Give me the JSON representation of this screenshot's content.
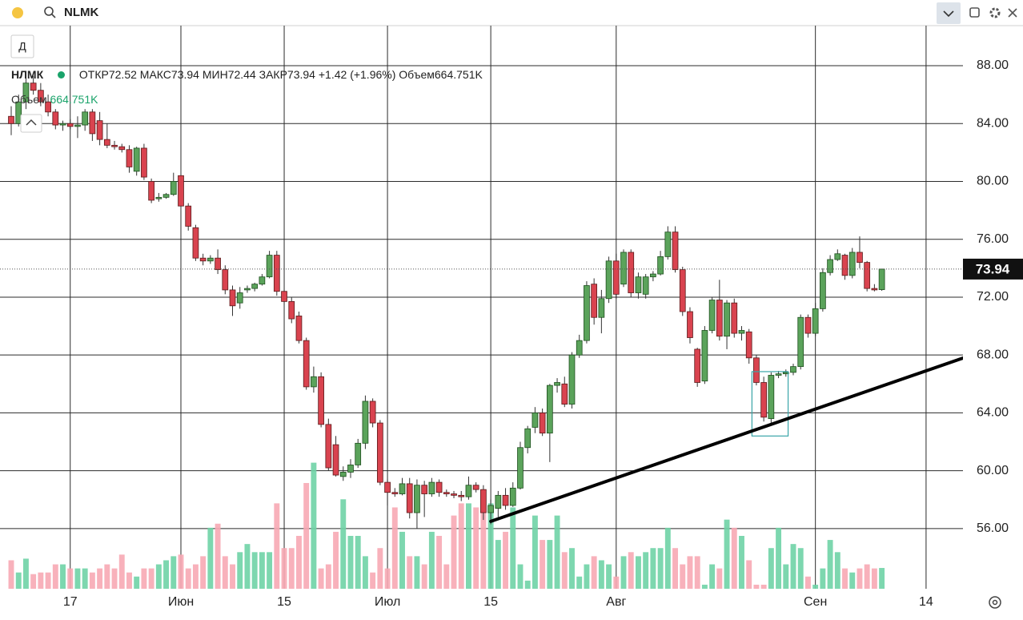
{
  "header": {
    "search": "NLMK"
  },
  "toolbar": {
    "interval": "Д"
  },
  "legend": {
    "ticker": "НЛМК",
    "open_label": "ОТКР",
    "high_label": "МАКС",
    "low_label": "МИН",
    "close_label": "ЗАКР",
    "change": "+1.42",
    "change_pct": "(+1.96%)",
    "volume_label": "Объем",
    "volume_value_label": "664.751K"
  },
  "chart_data": {
    "type": "candlestick",
    "categories": [
      null,
      null,
      null,
      null,
      null,
      null,
      null,
      null,
      "17",
      null,
      null,
      null,
      null,
      null,
      null,
      null,
      null,
      null,
      null,
      null,
      null,
      null,
      null,
      "Июн",
      null,
      null,
      null,
      null,
      null,
      null,
      null,
      null,
      null,
      null,
      null,
      null,
      null,
      "15",
      null,
      null,
      null,
      null,
      null,
      null,
      null,
      null,
      null,
      null,
      null,
      null,
      null,
      "Июл",
      null,
      null,
      null,
      null,
      null,
      null,
      null,
      null,
      null,
      null,
      null,
      null,
      null,
      "15",
      null,
      null,
      null,
      null,
      null,
      null,
      null,
      null,
      null,
      null,
      null,
      null,
      null,
      null,
      null,
      null,
      "Авг",
      null,
      null,
      null,
      null,
      null,
      null,
      null,
      null,
      null,
      null,
      null,
      null,
      null,
      null,
      null,
      null,
      null,
      null,
      null,
      null,
      null,
      null,
      null,
      null,
      null,
      null,
      "Сен",
      null,
      null,
      null,
      null,
      null,
      null,
      null,
      null,
      null,
      null,
      null,
      null,
      null,
      null,
      "14",
      null,
      null,
      null,
      null,
      null
    ],
    "open": [
      84.5,
      84.0,
      85.5,
      86.8,
      86.3,
      85.5,
      84.8,
      83.9,
      84.0,
      83.8,
      83.9,
      84.8,
      84.2,
      82.9,
      82.5,
      82.4,
      82.2,
      80.7,
      82.3,
      80.0,
      78.8,
      78.9,
      79.1,
      80.4,
      78.3,
      76.8,
      74.7,
      74.5,
      74.7,
      73.9,
      72.5,
      71.6,
      72.5,
      72.6,
      72.9,
      73.4,
      74.9,
      72.4,
      71.7,
      70.7,
      69.0,
      65.8,
      66.5,
      63.2,
      61.8,
      59.6,
      59.9,
      60.4,
      61.9,
      64.8,
      63.3,
      59.2,
      58.5,
      58.4,
      59.1,
      57.1,
      59.0,
      58.4,
      59.2,
      58.5,
      58.4,
      58.3,
      58.2,
      59.0,
      58.7,
      57.1,
      57.4,
      58.3,
      57.6,
      58.8,
      61.6,
      63.0,
      64.0,
      62.6,
      65.9,
      66.0,
      64.6,
      68.0,
      69.0,
      72.9,
      70.6,
      71.9,
      74.5,
      72.9,
      75.1,
      72.3,
      72.2,
      73.4,
      73.6,
      74.8,
      76.5,
      73.9,
      71.0,
      68.4,
      66.2,
      69.7,
      71.8,
      69.3,
      71.6,
      69.5,
      69.6,
      67.8,
      66.1,
      63.6,
      66.6,
      66.7,
      66.8,
      67.2,
      70.6,
      69.5,
      71.2,
      73.7,
      74.6,
      74.9,
      73.5,
      75.1,
      74.4,
      72.6,
      72.52,
      null,
      null,
      null,
      null,
      null,
      null,
      null,
      null,
      null,
      null,
      null
    ],
    "high": [
      85.2,
      86.0,
      87.5,
      87.3,
      86.8,
      86.0,
      85.0,
      84.2,
      84.3,
      84.5,
      85.0,
      85.0,
      84.8,
      84.0,
      82.8,
      82.6,
      82.5,
      82.4,
      82.6,
      80.2,
      79.2,
      79.2,
      80.6,
      80.8,
      78.5,
      77.0,
      75.0,
      74.9,
      75.3,
      74.2,
      72.8,
      72.7,
      72.8,
      73.0,
      73.6,
      75.2,
      75.2,
      72.6,
      72.0,
      71.0,
      69.2,
      67.2,
      66.8,
      63.6,
      62.4,
      60.3,
      60.8,
      62.2,
      65.2,
      65.0,
      63.5,
      59.4,
      58.8,
      59.5,
      59.5,
      59.4,
      59.3,
      59.5,
      59.4,
      58.7,
      58.6,
      58.6,
      59.6,
      59.2,
      59.0,
      58.0,
      58.6,
      58.8,
      59.2,
      62.0,
      63.1,
      64.4,
      64.3,
      66.0,
      66.4,
      66.5,
      68.2,
      69.4,
      73.1,
      73.3,
      72.5,
      74.8,
      75.0,
      75.3,
      75.3,
      73.7,
      73.6,
      73.8,
      75.2,
      76.9,
      76.9,
      74.1,
      71.3,
      68.5,
      70.0,
      72.0,
      73.2,
      71.8,
      71.9,
      70.0,
      69.8,
      68.0,
      66.5,
      66.8,
      66.9,
      67.0,
      67.4,
      70.8,
      70.8,
      71.6,
      74.0,
      74.9,
      75.3,
      75.0,
      75.4,
      76.2,
      74.5,
      72.9,
      73.94,
      null,
      null,
      null,
      null,
      null,
      null,
      null,
      null,
      null,
      null,
      null
    ],
    "low": [
      83.2,
      83.8,
      85.0,
      86.0,
      85.2,
      84.5,
      83.6,
      83.5,
      83.6,
      83.0,
      83.5,
      82.8,
      82.5,
      82.3,
      82.2,
      82.0,
      80.6,
      80.4,
      80.1,
      78.5,
      78.6,
      78.8,
      79.0,
      78.0,
      76.6,
      74.5,
      74.2,
      74.3,
      73.6,
      72.2,
      70.7,
      71.2,
      72.3,
      72.4,
      72.8,
      73.3,
      72.1,
      71.4,
      70.2,
      68.8,
      65.6,
      65.4,
      63.0,
      60.0,
      59.6,
      59.3,
      59.5,
      60.2,
      61.5,
      63.0,
      59.0,
      57.6,
      58.2,
      58.3,
      56.7,
      56.0,
      56.8,
      58.2,
      58.2,
      58.2,
      58.1,
      57.9,
      58.0,
      58.5,
      56.6,
      56.3,
      56.8,
      57.3,
      57.5,
      58.7,
      61.2,
      62.6,
      62.4,
      60.6,
      65.4,
      64.4,
      64.3,
      67.8,
      68.8,
      70.1,
      69.5,
      71.6,
      71.9,
      72.7,
      72.0,
      71.9,
      71.9,
      73.1,
      73.5,
      74.6,
      73.7,
      70.7,
      68.8,
      65.8,
      66.0,
      69.5,
      69.0,
      68.4,
      69.2,
      69.0,
      67.4,
      65.9,
      63.4,
      63.2,
      66.4,
      66.5,
      66.6,
      67.0,
      69.2,
      69.3,
      71.0,
      73.5,
      74.5,
      73.2,
      73.3,
      74.0,
      72.4,
      72.4,
      72.44,
      null,
      null,
      null,
      null,
      null,
      null,
      null,
      null,
      null,
      null,
      null
    ],
    "close": [
      84.0,
      85.5,
      86.8,
      86.3,
      85.5,
      84.8,
      83.9,
      84.0,
      83.8,
      83.9,
      84.8,
      83.3,
      82.9,
      82.5,
      82.4,
      82.2,
      81.0,
      82.3,
      80.3,
      78.7,
      78.9,
      79.1,
      80.0,
      78.3,
      76.9,
      74.7,
      74.5,
      74.7,
      73.9,
      72.5,
      71.4,
      72.3,
      72.6,
      72.9,
      73.4,
      74.9,
      72.4,
      71.7,
      70.5,
      69.0,
      65.8,
      66.5,
      63.2,
      60.2,
      59.7,
      59.9,
      60.4,
      61.9,
      64.8,
      63.3,
      59.2,
      58.5,
      58.4,
      59.1,
      57.1,
      59.0,
      58.4,
      59.2,
      58.5,
      58.4,
      58.3,
      58.2,
      59.0,
      58.7,
      57.1,
      57.6,
      58.3,
      57.6,
      58.8,
      61.6,
      62.9,
      64.0,
      62.6,
      65.9,
      66.1,
      64.6,
      68.0,
      69.0,
      72.8,
      70.6,
      71.9,
      74.5,
      72.2,
      75.1,
      72.3,
      73.4,
      73.4,
      73.6,
      74.8,
      76.5,
      73.9,
      71.0,
      69.2,
      66.1,
      69.7,
      71.8,
      69.3,
      71.6,
      69.5,
      69.7,
      67.8,
      66.1,
      63.7,
      66.6,
      66.7,
      66.8,
      67.2,
      70.6,
      69.5,
      71.2,
      73.7,
      74.6,
      75.0,
      73.5,
      75.1,
      74.4,
      72.6,
      72.5,
      73.94,
      null,
      null,
      null,
      null,
      null,
      null,
      null,
      null,
      null,
      null,
      null
    ],
    "volume": [
      910,
      520,
      962,
      468,
      520,
      520,
      780,
      780,
      650,
      650,
      650,
      520,
      650,
      780,
      650,
      1092,
      520,
      390,
      650,
      650,
      780,
      910,
      1040,
      1092,
      650,
      780,
      1040,
      1950,
      2080,
      1040,
      780,
      1170,
      1430,
      1170,
      1170,
      1170,
      2730,
      1300,
      1300,
      1690,
      3380,
      4030,
      650,
      780,
      1820,
      2860,
      1690,
      1690,
      1040,
      520,
      1300,
      650,
      2600,
      1820,
      1040,
      1040,
      780,
      1820,
      1690,
      780,
      2340,
      2730,
      2730,
      2600,
      2730,
      2730,
      1560,
      1820,
      2600,
      780,
      260,
      2340,
      1560,
      1560,
      2340,
      1170,
      1300,
      390,
      780,
      1040,
      910,
      780,
      390,
      1040,
      1170,
      1040,
      1170,
      1300,
      1300,
      1950,
      1300,
      780,
      1040,
      1040,
      130,
      780,
      650,
      2210,
      1950,
      1690,
      910,
      130,
      130,
      1300,
      1950,
      780,
      1430,
      1300,
      390,
      130,
      650,
      1560,
      1170,
      650,
      520,
      650,
      780,
      650,
      664.751,
      null,
      null,
      null,
      null,
      null,
      null,
      null,
      null,
      null,
      null,
      null
    ],
    "ylim": [
      51.84,
      90.77
    ],
    "yticks": [
      {
        "value": 56,
        "label": "56.00"
      },
      {
        "value": 60,
        "label": "60.00"
      },
      {
        "value": 64,
        "label": "64.00"
      },
      {
        "value": 68,
        "label": "68.00"
      },
      {
        "value": 72,
        "label": "72.00"
      },
      {
        "value": 76,
        "label": "76.00"
      },
      {
        "value": 80,
        "label": "80.00"
      },
      {
        "value": 84,
        "label": "84.00"
      },
      {
        "value": 88,
        "label": "88.00"
      }
    ],
    "y2lim": [
      0,
      18000
    ],
    "grid": true,
    "up_color": "#5ba35b",
    "down_color": "#d9434f",
    "volume_up_color": "#6fd3a6",
    "volume_down_color": "#f7a9b4",
    "trend_line": {
      "x": [
        65,
        129
      ],
      "y": [
        56.5,
        67.79
      ],
      "color": "#000000"
    },
    "box": {
      "x": [
        100.4,
        105.3
      ],
      "y": [
        62.4,
        66.85
      ],
      "color": "#3aa6a8"
    }
  }
}
